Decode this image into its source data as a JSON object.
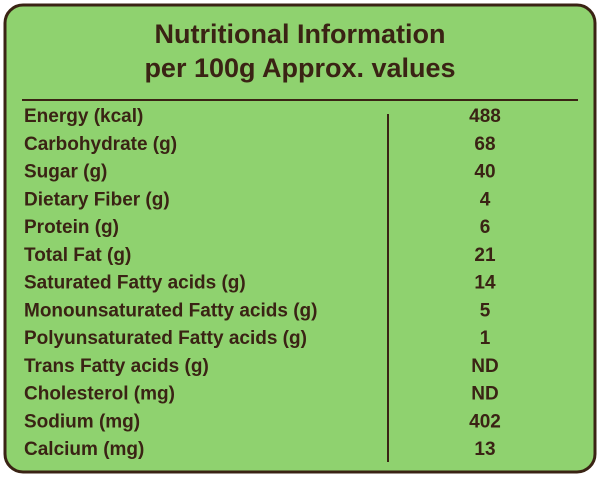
{
  "header": {
    "title": [
      "Nutritional Information",
      "per 100g Approx. values"
    ]
  },
  "table": {
    "rows": [
      [
        "Energy (kcal)",
        488
      ],
      [
        "Carbohydrate (g)",
        68
      ],
      [
        "Sugar (g)",
        40
      ],
      [
        "Dietary Fiber (g)",
        4
      ],
      [
        "Protein (g)",
        6
      ],
      [
        "Total Fat (g)",
        21
      ],
      [
        "Saturated Fatty acids (g)",
        14
      ],
      [
        "Monounsaturated Fatty acids (g)",
        5
      ],
      [
        "Polyunsaturated Fatty acids (g)",
        1
      ],
      [
        "Trans Fatty acids (g)",
        "ND"
      ],
      [
        "Cholesterol (mg)",
        "ND"
      ],
      [
        "Sodium (mg)",
        402
      ],
      [
        "Calcium (mg)",
        13
      ]
    ]
  }
}
